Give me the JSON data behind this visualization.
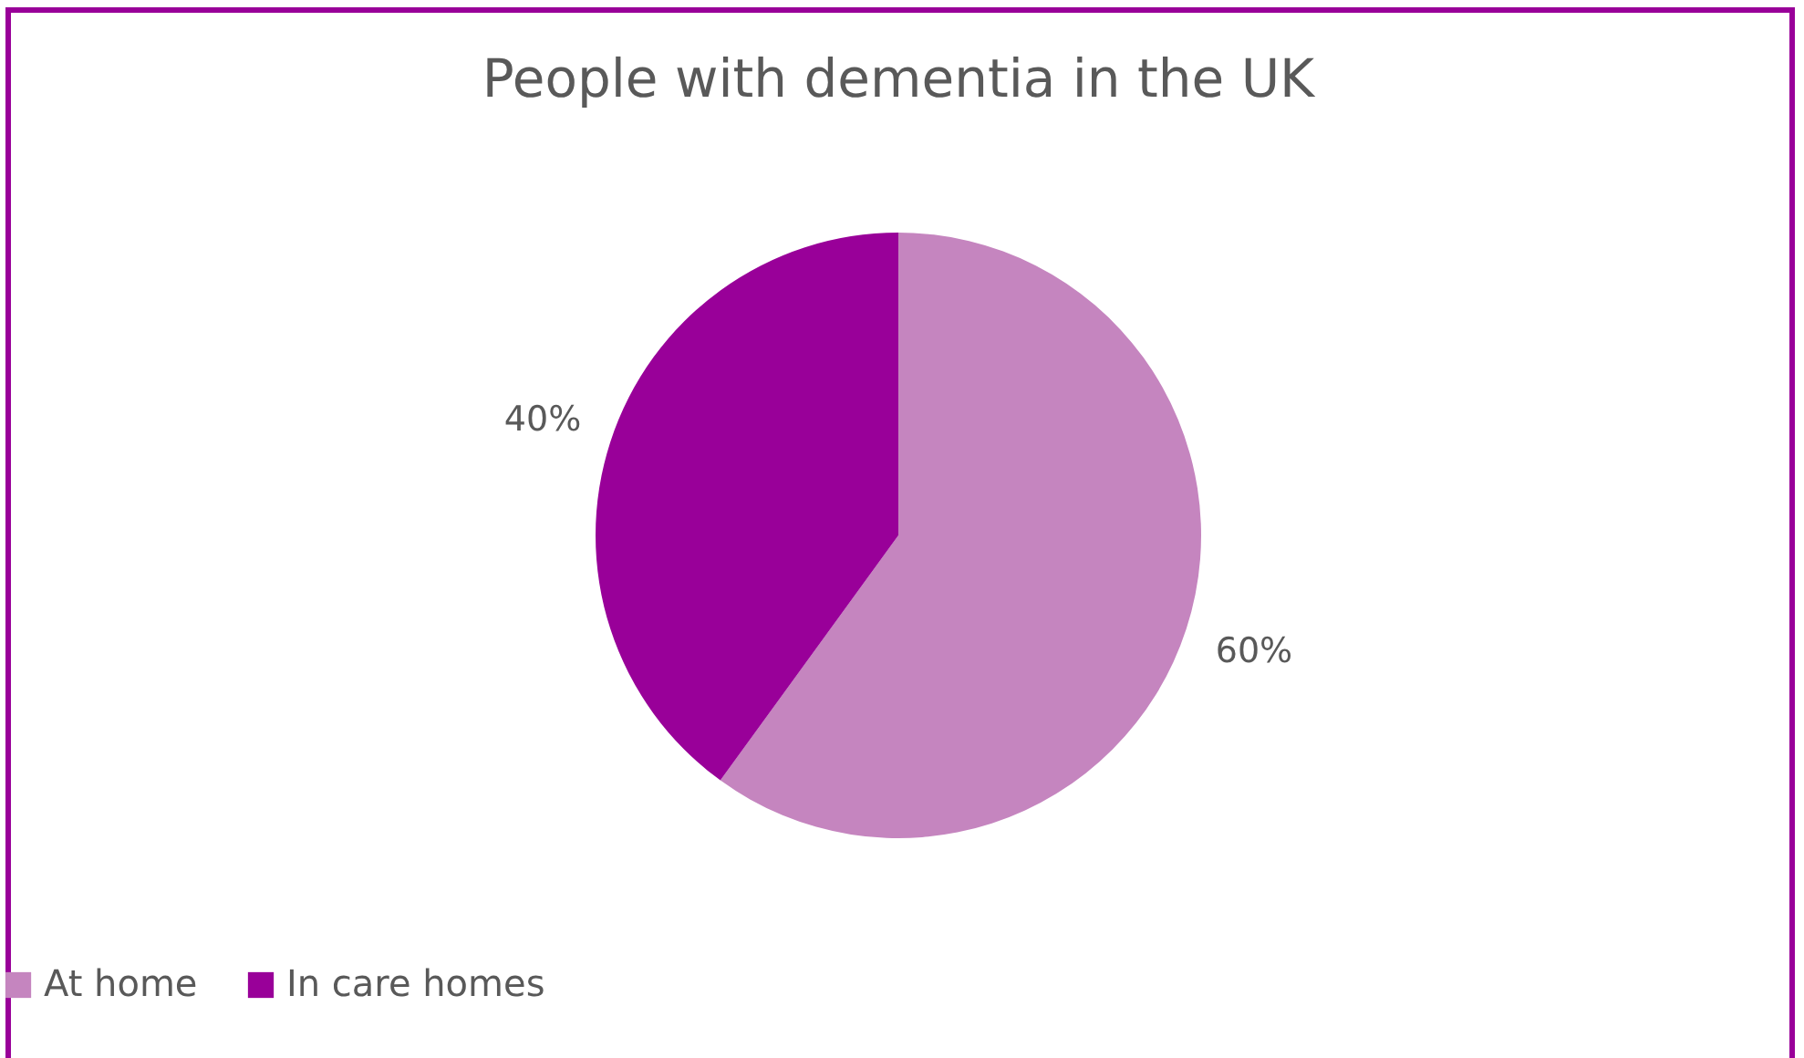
{
  "chart_data": {
    "type": "pie",
    "title": "People with dementia in the UK",
    "categories": [
      "At home",
      "In care homes"
    ],
    "values": [
      60,
      40
    ],
    "colors": [
      "#c585bf",
      "#990099"
    ],
    "value_labels": [
      "60%",
      "40%"
    ],
    "legend": "bottom"
  }
}
